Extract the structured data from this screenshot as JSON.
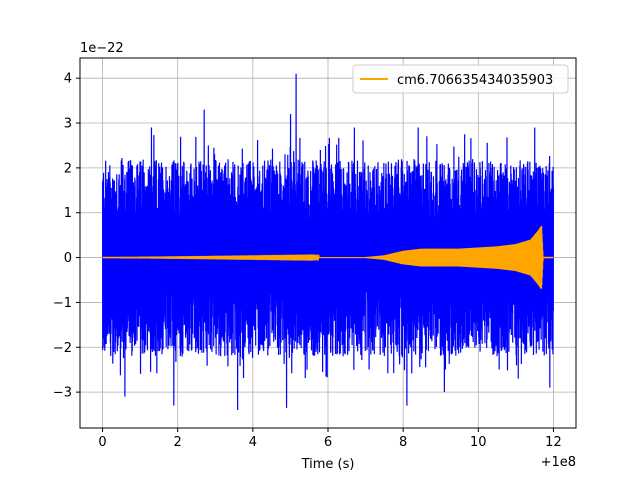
{
  "chart_data": {
    "type": "line",
    "xlabel": "Time (s)",
    "ylabel": "",
    "x_offset_label": "+1e8",
    "y_scale_label": "1e−22",
    "xlim": [
      -0.6,
      12.6
    ],
    "ylim": [
      -3.8,
      4.45
    ],
    "x_ticks": [
      0,
      2,
      4,
      6,
      8,
      10,
      12
    ],
    "y_ticks": [
      -3,
      -2,
      -1,
      0,
      1,
      2,
      3,
      4
    ],
    "grid": true,
    "legend_position": "top-right",
    "series": [
      {
        "name": "",
        "color": "#0000ff",
        "description": "noise strain",
        "x_range": [
          0,
          12
        ],
        "envelope_typical": 2.0,
        "spikes": [
          {
            "x": 5.15,
            "y": 4.1
          },
          {
            "x": 2.7,
            "y": 3.3
          },
          {
            "x": 5.0,
            "y": 3.2
          },
          {
            "x": 8.4,
            "y": 2.9
          },
          {
            "x": 6.7,
            "y": 2.9
          },
          {
            "x": 1.3,
            "y": 2.9
          },
          {
            "x": 3.6,
            "y": -3.4
          },
          {
            "x": 4.9,
            "y": -3.35
          },
          {
            "x": 1.9,
            "y": -3.3
          },
          {
            "x": 8.1,
            "y": -3.3
          },
          {
            "x": 0.6,
            "y": -3.1
          },
          {
            "x": 9.1,
            "y": -3.0
          },
          {
            "x": 11.5,
            "y": 2.9
          },
          {
            "x": 11.9,
            "y": -2.9
          }
        ]
      },
      {
        "name": "cm6.706635434035903",
        "color": "#ffa500",
        "description": "chirp signal",
        "x_range": [
          0,
          12
        ],
        "envelope": [
          {
            "x": 0,
            "y": 0.0
          },
          {
            "x": 7.0,
            "y": 0.01
          },
          {
            "x": 7.5,
            "y": 0.05
          },
          {
            "x": 8.0,
            "y": 0.15
          },
          {
            "x": 8.5,
            "y": 0.2
          },
          {
            "x": 9.5,
            "y": 0.2
          },
          {
            "x": 10.5,
            "y": 0.25
          },
          {
            "x": 11.0,
            "y": 0.3
          },
          {
            "x": 11.4,
            "y": 0.4
          },
          {
            "x": 11.6,
            "y": 0.6
          },
          {
            "x": 11.68,
            "y": 0.7
          },
          {
            "x": 11.72,
            "y": 0.0
          },
          {
            "x": 12.0,
            "y": 0.0
          }
        ]
      }
    ]
  }
}
